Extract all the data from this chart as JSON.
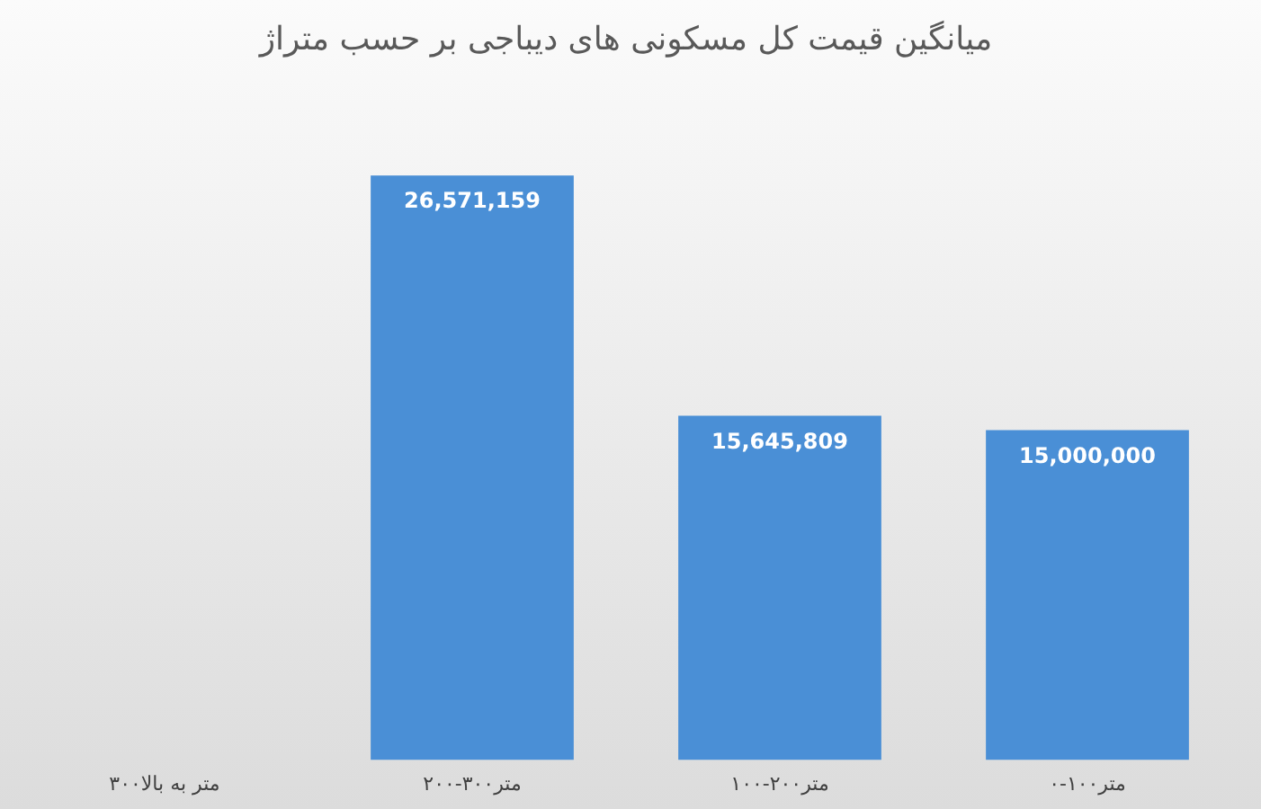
{
  "chart_data": {
    "type": "bar",
    "title": "میانگین قیمت کل مسکونی های دیباجی بر حسب متراژ",
    "categories": [
      "۳۰۰متر به بالا",
      "۲۰۰-۳۰۰متر",
      "۱۰۰-۲۰۰متر",
      "۰-۱۰۰متر"
    ],
    "values": [
      null,
      26571159,
      15645809,
      15000000
    ],
    "color": "#4a8fd6",
    "value_labels": [
      null,
      "26,571,159",
      "15,645,809",
      "15,000,000"
    ],
    "tick_labels": "x"
  }
}
